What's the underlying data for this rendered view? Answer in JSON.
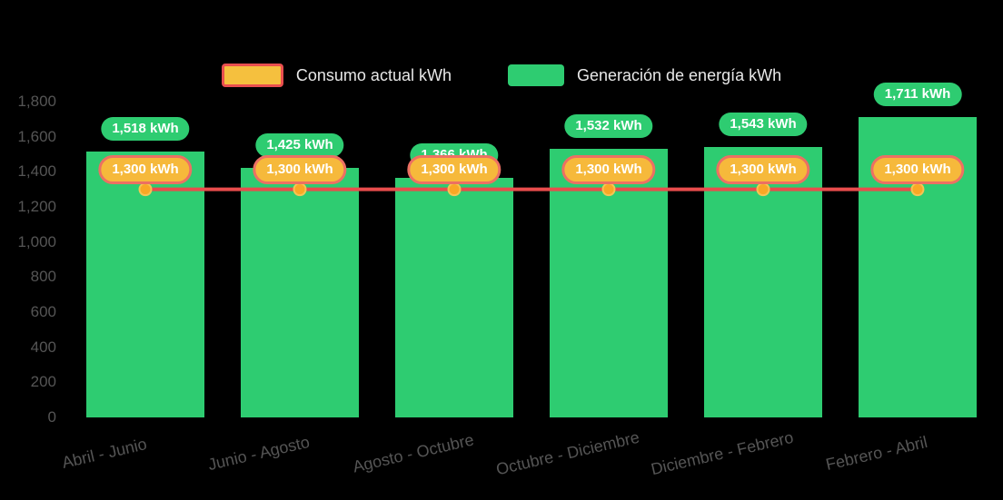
{
  "page": {
    "background": "#000000"
  },
  "legend": {
    "items": [
      {
        "label": "Consumo actual kWh",
        "swatch_fill": "#F5C03E",
        "swatch_border": "#E94F4F"
      },
      {
        "label": "Generación de energía kWh",
        "swatch_fill": "#2ECC71"
      }
    ]
  },
  "chart_data": {
    "type": "bar",
    "categories": [
      "Abril - Junio",
      "Junio - Agosto",
      "Agosto - Octubre",
      "Octubre - Diciembre",
      "Diciembre - Febrero",
      "Febrero - Abril"
    ],
    "series": [
      {
        "name": "Generación de energía kWh",
        "type": "bar",
        "color": "#2ECC71",
        "values": [
          1518,
          1425,
          1366,
          1532,
          1543,
          1711
        ],
        "labels": [
          "1,518 kWh",
          "1,425 kWh",
          "1,366 kWh",
          "1,532 kWh",
          "1,543 kWh",
          "1,711 kWh"
        ]
      },
      {
        "name": "Consumo actual kWh",
        "type": "line",
        "color": "#E84C4C",
        "marker_color": "#F9A825",
        "values": [
          1300,
          1300,
          1300,
          1300,
          1300,
          1300
        ],
        "labels": [
          "1,300 kWh",
          "1,300 kWh",
          "1,300 kWh",
          "1,300 kWh",
          "1,300 kWh",
          "1,300 kWh"
        ]
      }
    ],
    "ylim": [
      0,
      1800
    ],
    "yticks": {
      "values": [
        0,
        200,
        400,
        600,
        800,
        1000,
        1200,
        1400,
        1600,
        1800
      ],
      "labels": [
        "0",
        "200",
        "400",
        "600",
        "800",
        "1,000",
        "1,200",
        "1,400",
        "1,600",
        "1,800"
      ]
    },
    "grid": false,
    "legend_position": "top"
  }
}
